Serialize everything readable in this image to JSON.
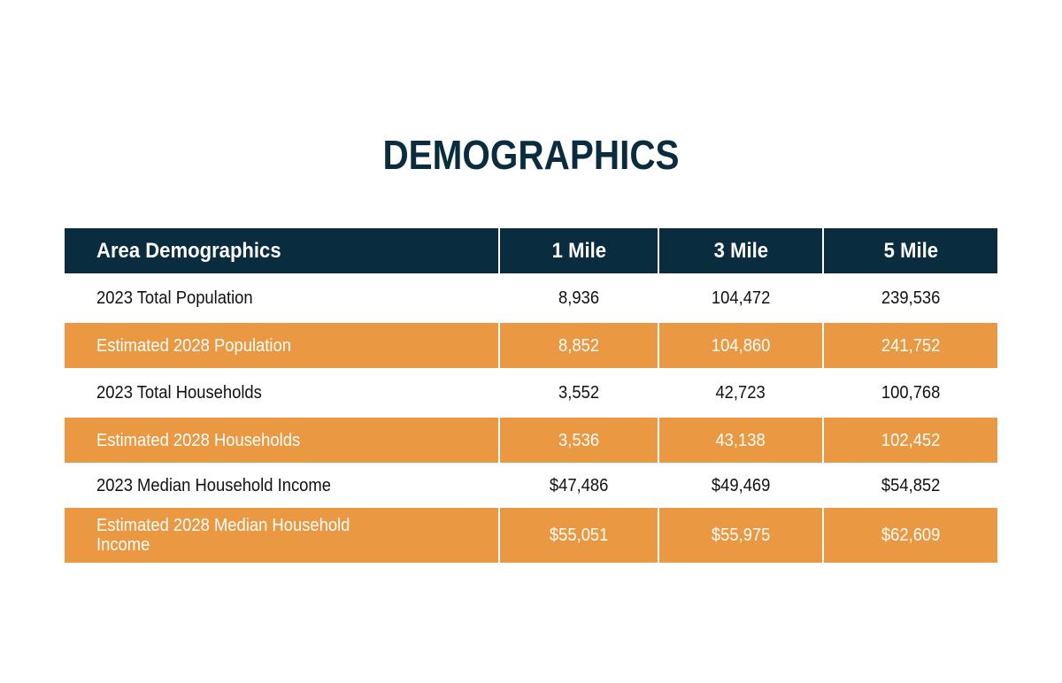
{
  "title": "DEMOGRAPHICS",
  "table": {
    "headers": [
      "Area Demographics",
      "1 Mile",
      "3 Mile",
      "5 Mile"
    ],
    "rows": [
      {
        "label": "2023 Total Population",
        "values": [
          "8,936",
          "104,472",
          "239,536"
        ],
        "style": "plain"
      },
      {
        "label": "Estimated 2028 Population",
        "values": [
          "8,852",
          "104,860",
          "241,752"
        ],
        "style": "band"
      },
      {
        "label": "2023 Total Households",
        "values": [
          "3,552",
          "42,723",
          "100,768"
        ],
        "style": "plain"
      },
      {
        "label": "Estimated 2028 Households",
        "values": [
          "3,536",
          "43,138",
          "102,452"
        ],
        "style": "band"
      },
      {
        "label": "2023 Median Household Income",
        "values": [
          "$47,486",
          "$49,469",
          "$54,852"
        ],
        "style": "plain"
      },
      {
        "label": "Estimated 2028 Median Household Income",
        "values": [
          "$55,051",
          "$55,975",
          "$62,609"
        ],
        "style": "band"
      }
    ]
  },
  "colors": {
    "header_bg": "#0a2c3f",
    "band_bg": "#ea9842",
    "title": "#0a2c3f"
  }
}
